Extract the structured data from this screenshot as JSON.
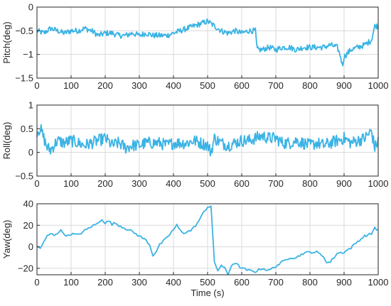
{
  "chart_data": [
    {
      "type": "line",
      "ylabel": "Pitch(deg)",
      "xlabel": "",
      "xlim": [
        0,
        1000
      ],
      "ylim": [
        -1.5,
        0
      ],
      "xticks": [
        0,
        100,
        200,
        300,
        400,
        500,
        600,
        700,
        800,
        900,
        1000
      ],
      "yticks": [
        -1.5,
        -1,
        -0.5,
        0
      ],
      "ytick_labels": [
        "−1.5",
        "−1",
        "−0.5",
        "0"
      ],
      "grid": true,
      "color": "#3bb3e4",
      "noise": 0.06,
      "x": [
        0,
        20,
        40,
        60,
        80,
        100,
        120,
        140,
        160,
        180,
        200,
        220,
        240,
        260,
        280,
        300,
        320,
        340,
        360,
        380,
        400,
        420,
        440,
        460,
        480,
        500,
        520,
        540,
        560,
        580,
        600,
        620,
        640,
        645,
        660,
        680,
        700,
        720,
        740,
        760,
        780,
        800,
        820,
        840,
        860,
        880,
        890,
        895,
        900,
        920,
        940,
        960,
        980,
        990,
        1000
      ],
      "y": [
        -0.5,
        -0.55,
        -0.45,
        -0.5,
        -0.55,
        -0.5,
        -0.5,
        -0.45,
        -0.5,
        -0.6,
        -0.55,
        -0.55,
        -0.6,
        -0.6,
        -0.55,
        -0.6,
        -0.55,
        -0.6,
        -0.6,
        -0.6,
        -0.55,
        -0.5,
        -0.45,
        -0.4,
        -0.35,
        -0.3,
        -0.4,
        -0.5,
        -0.55,
        -0.5,
        -0.55,
        -0.5,
        -0.5,
        -0.9,
        -0.9,
        -0.85,
        -0.9,
        -0.85,
        -0.85,
        -0.9,
        -0.85,
        -0.85,
        -0.85,
        -0.85,
        -0.8,
        -0.85,
        -1.05,
        -1.25,
        -1.05,
        -0.9,
        -0.85,
        -0.8,
        -0.7,
        -0.4,
        -0.4
      ]
    },
    {
      "type": "line",
      "ylabel": "Roll(deg)",
      "xlabel": "",
      "xlim": [
        0,
        1000
      ],
      "ylim": [
        -0.5,
        1
      ],
      "xticks": [
        0,
        100,
        200,
        300,
        400,
        500,
        600,
        700,
        800,
        900,
        1000
      ],
      "yticks": [
        -0.5,
        0,
        0.5,
        1
      ],
      "ytick_labels": [
        "−0.5",
        "0",
        "0.5",
        "1"
      ],
      "grid": true,
      "color": "#3bb3e4",
      "noise": 0.13,
      "x": [
        0,
        10,
        20,
        30,
        40,
        60,
        80,
        100,
        120,
        140,
        160,
        180,
        200,
        220,
        240,
        260,
        280,
        300,
        320,
        340,
        360,
        380,
        400,
        420,
        440,
        460,
        480,
        500,
        510,
        520,
        540,
        560,
        580,
        600,
        620,
        640,
        660,
        680,
        700,
        720,
        740,
        760,
        780,
        800,
        820,
        840,
        860,
        880,
        900,
        920,
        940,
        960,
        980,
        990,
        1000
      ],
      "y": [
        0.45,
        0.5,
        0.3,
        0.1,
        0.05,
        0.25,
        0.2,
        0.25,
        0.2,
        0.15,
        0.2,
        0.25,
        0.3,
        0.15,
        0.2,
        0.1,
        0.15,
        0.15,
        0.2,
        0.2,
        0.2,
        0.15,
        0.2,
        0.2,
        0.2,
        0.25,
        0.2,
        0.15,
        0.0,
        0.3,
        0.2,
        0.15,
        0.2,
        0.25,
        0.25,
        0.3,
        0.35,
        0.3,
        0.3,
        0.2,
        0.2,
        0.25,
        0.2,
        0.15,
        0.2,
        0.15,
        0.2,
        0.25,
        0.3,
        0.2,
        0.25,
        0.3,
        0.45,
        0.1,
        0.25
      ]
    },
    {
      "type": "line",
      "ylabel": "Yaw(deg)",
      "xlabel": "Time (s)",
      "xlim": [
        0,
        1000
      ],
      "ylim": [
        -26,
        40
      ],
      "xticks": [
        0,
        100,
        200,
        300,
        400,
        500,
        600,
        700,
        800,
        900,
        1000
      ],
      "yticks": [
        -20,
        0,
        20,
        40
      ],
      "ytick_labels": [
        "−20",
        "0",
        "20",
        "40"
      ],
      "grid": true,
      "color": "#3bb3e4",
      "noise": 0,
      "x": [
        0,
        10,
        20,
        30,
        40,
        50,
        60,
        70,
        80,
        90,
        100,
        120,
        140,
        160,
        180,
        190,
        200,
        210,
        220,
        230,
        240,
        260,
        280,
        300,
        320,
        330,
        340,
        350,
        360,
        370,
        380,
        390,
        400,
        410,
        420,
        430,
        440,
        450,
        460,
        470,
        480,
        490,
        500,
        510,
        520,
        530,
        540,
        550,
        560,
        570,
        580,
        600,
        620,
        640,
        660,
        680,
        700,
        720,
        740,
        760,
        780,
        800,
        820,
        840,
        850,
        860,
        870,
        880,
        900,
        920,
        940,
        960,
        980,
        990,
        1000
      ],
      "y": [
        0,
        -1,
        4,
        10,
        12,
        11,
        13,
        15,
        12,
        10,
        12,
        11,
        15,
        19,
        22,
        26,
        22,
        24,
        21,
        22,
        20,
        17,
        14,
        10,
        6,
        2,
        -8,
        -4,
        2,
        5,
        8,
        12,
        16,
        20,
        15,
        13,
        14,
        15,
        18,
        22,
        27,
        33,
        37,
        38,
        -15,
        -22,
        -17,
        -20,
        -26,
        -17,
        -15,
        -20,
        -22,
        -23,
        -20,
        -22,
        -18,
        -14,
        -10,
        -10,
        -6,
        -5,
        -5,
        -9,
        -15,
        -14,
        -10,
        -6,
        -5,
        -1,
        5,
        10,
        12,
        18,
        15
      ]
    }
  ]
}
